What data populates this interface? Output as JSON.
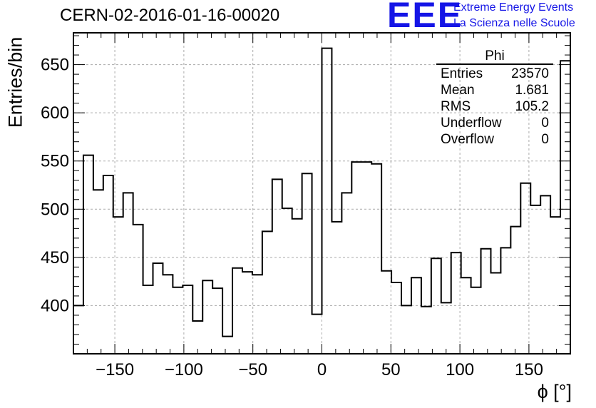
{
  "header": {
    "title": "CERN-02-2016-01-16-00020",
    "logo_text": "EEE",
    "logo_line1": "Extreme Energy Events",
    "logo_line2": "La Scienza nelle Scuole",
    "logo_color": "#1515e6"
  },
  "stats_box": {
    "title": "Phi",
    "rows": [
      {
        "key": "Entries",
        "value": "23570"
      },
      {
        "key": "Mean",
        "value": "1.681"
      },
      {
        "key": "RMS",
        "value": "105.2"
      },
      {
        "key": "Underflow",
        "value": "0"
      },
      {
        "key": "Overflow",
        "value": "0"
      }
    ]
  },
  "chart_data": {
    "type": "bar",
    "style": "step-histogram",
    "xlabel": "ϕ [°]",
    "ylabel": "Entries/bin",
    "xlim": [
      -180,
      180
    ],
    "ylim": [
      350,
      683
    ],
    "bin_width": 7.2,
    "grid": true,
    "x_ticks": [
      -150,
      -100,
      -50,
      0,
      50,
      100,
      150
    ],
    "x_tick_labels": [
      "−150",
      "−100",
      "−50",
      "0",
      "50",
      "100",
      "150"
    ],
    "y_ticks": [
      400,
      450,
      500,
      550,
      600,
      650
    ],
    "y_tick_labels": [
      "400",
      "450",
      "500",
      "550",
      "600",
      "650"
    ],
    "values": [
      400,
      556,
      520,
      535,
      492,
      517,
      484,
      421,
      444,
      432,
      419,
      421,
      384,
      426,
      418,
      368,
      439,
      435,
      432,
      477,
      531,
      501,
      490,
      537,
      391,
      667,
      487,
      517,
      549,
      549,
      547,
      436,
      424,
      400,
      429,
      399,
      449,
      403,
      455,
      429,
      419,
      459,
      434,
      460,
      482,
      527,
      504,
      514,
      492,
      654
    ]
  }
}
